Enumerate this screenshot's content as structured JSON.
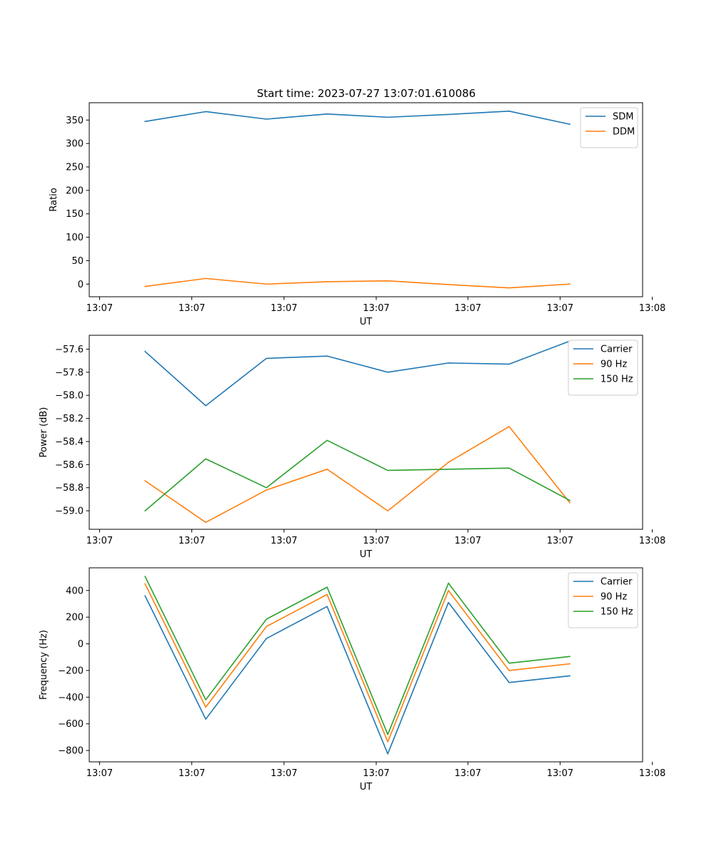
{
  "figure_title": "Start time: 2023-07-27 13:07:01.610086",
  "colors": {
    "c0": "#1f77b4",
    "c1": "#ff7f0e",
    "c2": "#2ca02c"
  },
  "chart_data": [
    {
      "type": "line",
      "title": "Start time: 2023-07-27 13:07:01.610086",
      "xlabel": "UT",
      "ylabel": "Ratio",
      "xlim": [
        -0.92,
        8.2
      ],
      "ylim": [
        -27,
        387
      ],
      "x": [
        0,
        1,
        2,
        3,
        4,
        5,
        6,
        7
      ],
      "xticks": [
        {
          "value": -0.75,
          "label": "13:07"
        },
        {
          "value": 0.77,
          "label": "13:07"
        },
        {
          "value": 2.29,
          "label": "13:07"
        },
        {
          "value": 3.81,
          "label": "13:07"
        },
        {
          "value": 5.32,
          "label": "13:07"
        },
        {
          "value": 6.84,
          "label": "13:07"
        },
        {
          "value": 8.36,
          "label": "13:08"
        }
      ],
      "yticks": [
        {
          "value": 0,
          "label": "0"
        },
        {
          "value": 50,
          "label": "50"
        },
        {
          "value": 100,
          "label": "100"
        },
        {
          "value": 150,
          "label": "150"
        },
        {
          "value": 200,
          "label": "200"
        },
        {
          "value": 250,
          "label": "250"
        },
        {
          "value": 300,
          "label": "300"
        },
        {
          "value": 350,
          "label": "350"
        }
      ],
      "legend": "top-right",
      "series": [
        {
          "name": "SDM",
          "color": "#1f77b4",
          "values": [
            347,
            368,
            352,
            363,
            356,
            362,
            369,
            341
          ]
        },
        {
          "name": "DDM",
          "color": "#ff7f0e",
          "values": [
            -5,
            12,
            0,
            5,
            7,
            -1,
            -8,
            0
          ]
        }
      ]
    },
    {
      "type": "line",
      "title": "",
      "xlabel": "UT",
      "ylabel": "Power (dB)",
      "xlim": [
        -0.92,
        8.2
      ],
      "ylim": [
        -59.16,
        -57.48
      ],
      "x": [
        0,
        1,
        2,
        3,
        4,
        5,
        6,
        7
      ],
      "xticks": [
        {
          "value": -0.75,
          "label": "13:07"
        },
        {
          "value": 0.77,
          "label": "13:07"
        },
        {
          "value": 2.29,
          "label": "13:07"
        },
        {
          "value": 3.81,
          "label": "13:07"
        },
        {
          "value": 5.32,
          "label": "13:07"
        },
        {
          "value": 6.84,
          "label": "13:07"
        },
        {
          "value": 8.36,
          "label": "13:08"
        }
      ],
      "yticks": [
        {
          "value": -59.0,
          "label": "−59.0"
        },
        {
          "value": -58.8,
          "label": "−58.8"
        },
        {
          "value": -58.6,
          "label": "−58.6"
        },
        {
          "value": -58.4,
          "label": "−58.4"
        },
        {
          "value": -58.2,
          "label": "−58.2"
        },
        {
          "value": -58.0,
          "label": "−58.0"
        },
        {
          "value": -57.8,
          "label": "−57.8"
        },
        {
          "value": -57.6,
          "label": "−57.6"
        }
      ],
      "legend": "top-right",
      "series": [
        {
          "name": "Carrier",
          "color": "#1f77b4",
          "values": [
            -57.62,
            -58.09,
            -57.68,
            -57.66,
            -57.8,
            -57.72,
            -57.73,
            -57.53
          ]
        },
        {
          "name": "90 Hz",
          "color": "#ff7f0e",
          "values": [
            -58.74,
            -59.1,
            -58.82,
            -58.64,
            -59.0,
            -58.58,
            -58.27,
            -58.93
          ]
        },
        {
          "name": "150 Hz",
          "color": "#2ca02c",
          "values": [
            -59.0,
            -58.55,
            -58.8,
            -58.39,
            -58.65,
            -58.64,
            -58.63,
            -58.91
          ]
        }
      ]
    },
    {
      "type": "line",
      "title": "",
      "xlabel": "UT",
      "ylabel": "Frequency (Hz)",
      "xlim": [
        -0.92,
        8.2
      ],
      "ylim": [
        -885,
        570
      ],
      "x": [
        0,
        1,
        2,
        3,
        4,
        5,
        6,
        7
      ],
      "xticks": [
        {
          "value": -0.75,
          "label": "13:07"
        },
        {
          "value": 0.77,
          "label": "13:07"
        },
        {
          "value": 2.29,
          "label": "13:07"
        },
        {
          "value": 3.81,
          "label": "13:07"
        },
        {
          "value": 5.32,
          "label": "13:07"
        },
        {
          "value": 6.84,
          "label": "13:07"
        },
        {
          "value": 8.36,
          "label": "13:08"
        }
      ],
      "yticks": [
        {
          "value": -800,
          "label": "−800"
        },
        {
          "value": -600,
          "label": "−600"
        },
        {
          "value": -400,
          "label": "−400"
        },
        {
          "value": -200,
          "label": "−200"
        },
        {
          "value": 0,
          "label": "0"
        },
        {
          "value": 200,
          "label": "200"
        },
        {
          "value": 400,
          "label": "400"
        }
      ],
      "legend": "top-right",
      "series": [
        {
          "name": "Carrier",
          "color": "#1f77b4",
          "values": [
            360,
            -565,
            40,
            280,
            -825,
            310,
            -290,
            -240
          ]
        },
        {
          "name": "90 Hz",
          "color": "#ff7f0e",
          "values": [
            450,
            -475,
            130,
            370,
            -735,
            400,
            -200,
            -150
          ]
        },
        {
          "name": "150 Hz",
          "color": "#2ca02c",
          "values": [
            505,
            -420,
            185,
            425,
            -680,
            455,
            -145,
            -95
          ]
        }
      ]
    }
  ]
}
